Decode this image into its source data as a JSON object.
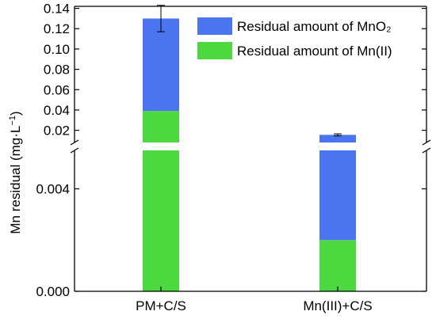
{
  "chart_data": {
    "type": "bar",
    "stacked": true,
    "broken_y_axis": true,
    "categories": [
      "PM+C/S",
      "Mn(III)+C/S"
    ],
    "series": [
      {
        "name": "Residual amount of Mn(II)",
        "color": "#4cd93f",
        "values": [
          0.039,
          0.002
        ]
      },
      {
        "name": "Residual amount of MnO₂",
        "color": "#4a74f0",
        "values": [
          0.091,
          0.0135
        ]
      }
    ],
    "totals": [
      0.13,
      0.0155
    ],
    "error_bars": [
      0.013,
      0.001
    ],
    "ylabel_main": "Mn residual (mg·L",
    "ylabel_sup": "−1",
    "ylabel_end": ")",
    "lower_segment": {
      "range": [
        0.0,
        0.0055
      ],
      "ticks": [
        "0.000",
        "0.004"
      ],
      "tick_values": [
        0.0,
        0.004
      ]
    },
    "upper_segment": {
      "range": [
        0.008,
        0.142
      ],
      "ticks": [
        "0.02",
        "0.04",
        "0.06",
        "0.08",
        "0.10",
        "0.12",
        "0.14"
      ],
      "tick_values": [
        0.02,
        0.04,
        0.06,
        0.08,
        0.1,
        0.12,
        0.14
      ]
    },
    "legend_position": "top-right",
    "grid": false
  }
}
